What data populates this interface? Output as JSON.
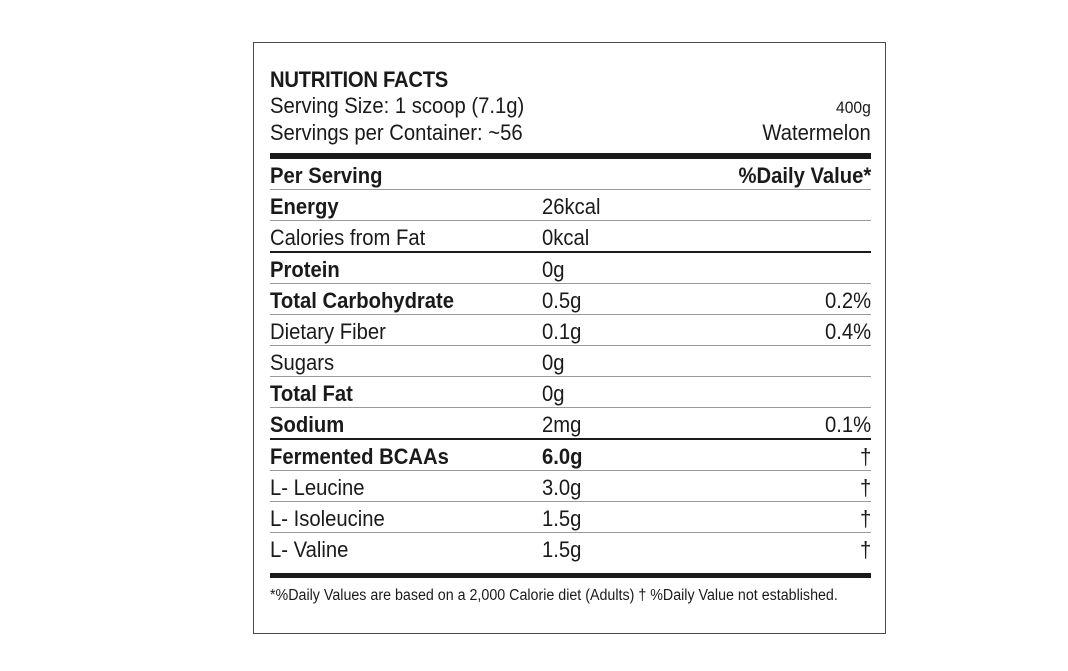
{
  "label": {
    "title": "NUTRITION FACTS",
    "serving_size": "Serving Size: 1 scoop (7.1g)",
    "servings_per_container": "Servings per Container: ~56",
    "net_weight": "400g",
    "flavor": "Watermelon",
    "columns": {
      "per_serving": "Per Serving",
      "daily_value": "%Daily Value*"
    },
    "rows": [
      {
        "name": "Energy",
        "amount": "26kcal",
        "dv": ""
      },
      {
        "name": "Calories from Fat",
        "amount": "0kcal",
        "dv": ""
      },
      {
        "name": "Protein",
        "amount": "0g",
        "dv": ""
      },
      {
        "name": "Total Carbohydrate",
        "amount": "0.5g",
        "dv": "0.2%"
      },
      {
        "name": "Dietary Fiber",
        "amount": "0.1g",
        "dv": "0.4%"
      },
      {
        "name": "Sugars",
        "amount": "0g",
        "dv": ""
      },
      {
        "name": "Total Fat",
        "amount": "0g",
        "dv": ""
      },
      {
        "name": "Sodium",
        "amount": "2mg",
        "dv": "0.1%"
      },
      {
        "name": "Fermented BCAAs",
        "amount": "6.0g",
        "dv": "†"
      },
      {
        "name": "L- Leucine",
        "amount": "3.0g",
        "dv": "†"
      },
      {
        "name": "L- Isoleucine",
        "amount": "1.5g",
        "dv": "†"
      },
      {
        "name": "L- Valine",
        "amount": "1.5g",
        "dv": "†"
      }
    ],
    "footnote": "*%Daily Values are based on a 2,000 Calorie diet (Adults) † %Daily Value not established."
  }
}
